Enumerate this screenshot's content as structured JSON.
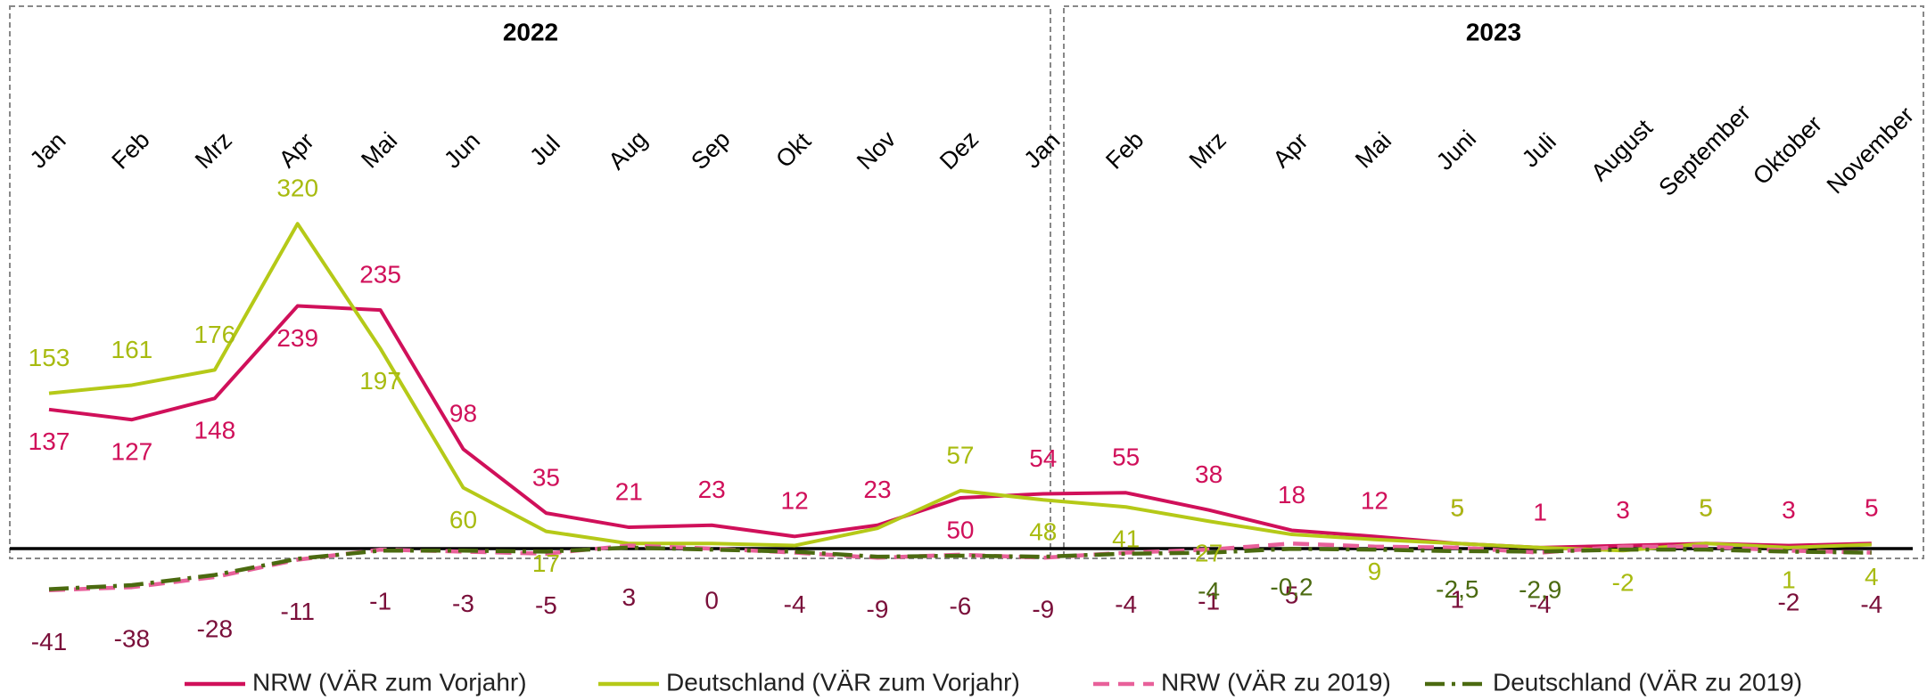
{
  "chart_data": {
    "type": "line",
    "panels": [
      {
        "title": "2022",
        "categories": [
          "Jan",
          "Feb",
          "Mrz",
          "Apr",
          "Mai",
          "Jun",
          "Jul",
          "Aug",
          "Sep",
          "Okt",
          "Nov",
          "Dez"
        ]
      },
      {
        "title": "2023",
        "categories": [
          "Jan",
          "Feb",
          "Mrz",
          "Apr",
          "Mai",
          "Juni",
          "Juli",
          "August",
          "September",
          "Oktober",
          "November"
        ]
      }
    ],
    "series": [
      {
        "name": "NRW (VÄR zum Vorjahr)",
        "color": "#d0105a",
        "label_color": "#d0105a",
        "dash": "solid",
        "values": [
          137,
          127,
          148,
          239,
          235,
          98,
          35,
          21,
          23,
          12,
          23,
          50,
          54,
          55,
          38,
          18,
          12,
          5,
          1,
          3,
          5,
          3,
          5
        ],
        "value_labels": [
          "137",
          "127",
          "148",
          "239",
          "235",
          "98",
          "35",
          "21",
          "23",
          "12",
          "23",
          "50",
          "54",
          "55",
          "38",
          "18",
          "12",
          "5",
          "1",
          "3",
          "5",
          "3",
          "5"
        ]
      },
      {
        "name": "Deutschland (VÄR zum Vorjahr)",
        "color": "#b5c918",
        "label_color": "#a8bb10",
        "dash": "solid",
        "values": [
          153,
          161,
          176,
          320,
          197,
          60,
          17,
          5,
          5,
          3,
          20,
          57,
          48,
          41,
          27,
          14,
          9,
          5,
          1,
          -2,
          5,
          1,
          4
        ],
        "value_labels": [
          "153",
          "161",
          "176",
          "320",
          "197",
          "60",
          "17",
          null,
          null,
          null,
          null,
          "57",
          "48",
          "41",
          "27",
          null,
          "9",
          "5",
          null,
          "-2",
          "5",
          "1",
          "4"
        ]
      },
      {
        "name": "NRW (VÄR zu 2019)",
        "color": "#e8609a",
        "label_color": "#7a0f3a",
        "dash": "dash",
        "values": [
          -41,
          -38,
          -28,
          -11,
          -1,
          -3,
          -5,
          3,
          0,
          -4,
          -9,
          -6,
          -9,
          -4,
          -1,
          5,
          2,
          1,
          -4,
          2,
          2,
          -2,
          -4
        ],
        "value_labels": [
          "-41",
          "-38",
          "-28",
          "-11",
          "-1",
          "-3",
          "-5",
          "3",
          "0",
          "-4",
          "-9",
          "-6",
          "-9",
          "-4",
          "-1",
          "5",
          null,
          "1",
          "-4",
          null,
          null,
          "-2",
          "-4"
        ]
      },
      {
        "name": "Deutschland (VÄR zu 2019)",
        "color": "#4b6a10",
        "label_color": "#4b6a10",
        "dash": "dashdot",
        "values": [
          -40,
          -36,
          -26,
          -10,
          -2,
          -2,
          -3,
          1,
          -1,
          -3,
          -8,
          -7,
          -8,
          -5,
          -4,
          -0.2,
          -1,
          -2.5,
          -2.9,
          -1,
          -1,
          -3,
          -4
        ],
        "value_labels": [
          null,
          null,
          null,
          null,
          null,
          null,
          null,
          null,
          null,
          null,
          null,
          null,
          null,
          null,
          "-4",
          "-0,2",
          null,
          "-2,5",
          "-2,9",
          null,
          null,
          null,
          null
        ]
      }
    ]
  }
}
